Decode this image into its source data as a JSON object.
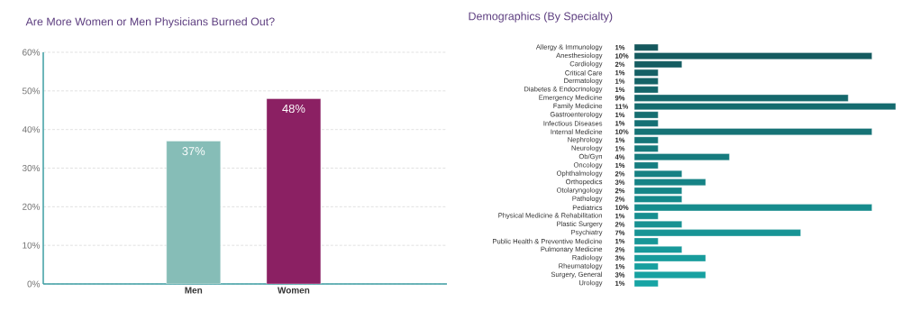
{
  "chart_data": [
    {
      "type": "bar",
      "title": "Are More Women or Men Physicians Burned Out?",
      "categories": [
        "Men",
        "Women"
      ],
      "values": [
        37,
        48
      ],
      "colors": [
        "#86bdb7",
        "#8b2063"
      ],
      "value_labels": [
        "37%",
        "48%"
      ],
      "ylim": [
        0,
        60
      ],
      "yticks": [
        {
          "value": 0,
          "label": "0%"
        },
        {
          "value": 10,
          "label": "10%"
        },
        {
          "value": 20,
          "label": "20%"
        },
        {
          "value": 30,
          "label": "30%"
        },
        {
          "value": 40,
          "label": "40%"
        },
        {
          "value": 50,
          "label": "50%"
        },
        {
          "value": 60,
          "label": "60%"
        }
      ],
      "grid": "y"
    },
    {
      "type": "bar",
      "orientation": "horizontal",
      "title": "Demographics (By Specialty)",
      "tick_labels": "y",
      "categories": [
        "Allergy & Immunology",
        "Anesthesiology",
        "Cardiology",
        "Critical Care",
        "Dermatology",
        "Diabetes & Endocrinology",
        "Emergency Medicine",
        "Family Medicine",
        "Gastroenterology",
        "Infectious Diseases",
        "Internal Medicine",
        "Nephrology",
        "Neurology",
        "Ob/Gyn",
        "Oncology",
        "Ophthalmology",
        "Orthopedics",
        "Otolaryngology",
        "Pathology",
        "Pediatrics",
        "Physical Medicine & Rehabilitation",
        "Plastic Surgery",
        "Psychiatry",
        "Public Health & Preventive Medicine",
        "Pulmonary Medicine",
        "Radiology",
        "Rheumatology",
        "Surgery, General",
        "Urology"
      ],
      "values": [
        1,
        10,
        2,
        1,
        1,
        1,
        9,
        11,
        1,
        1,
        10,
        1,
        1,
        4,
        1,
        2,
        3,
        2,
        2,
        10,
        1,
        2,
        7,
        1,
        2,
        3,
        1,
        3,
        1
      ],
      "value_labels": [
        "1%",
        "10%",
        "2%",
        "1%",
        "1%",
        "1%",
        "9%",
        "11%",
        "1%",
        "1%",
        "10%",
        "1%",
        "1%",
        "4%",
        "1%",
        "2%",
        "3%",
        "2%",
        "2%",
        "10%",
        "1%",
        "2%",
        "7%",
        "1%",
        "2%",
        "3%",
        "1%",
        "3%",
        "1%"
      ],
      "colors": [
        "#15585d",
        "#155b60",
        "#155d62",
        "#156065",
        "#156367",
        "#15666a",
        "#15686c",
        "#156b6f",
        "#156e71",
        "#157074",
        "#167376",
        "#167679",
        "#16797b",
        "#167b7e",
        "#167e81",
        "#168183",
        "#168386",
        "#168688",
        "#16898b",
        "#168c8d",
        "#178e90",
        "#179192",
        "#179495",
        "#179697",
        "#17999a",
        "#179c9c",
        "#179f9f",
        "#17a1a1",
        "#17a4a4"
      ]
    }
  ]
}
